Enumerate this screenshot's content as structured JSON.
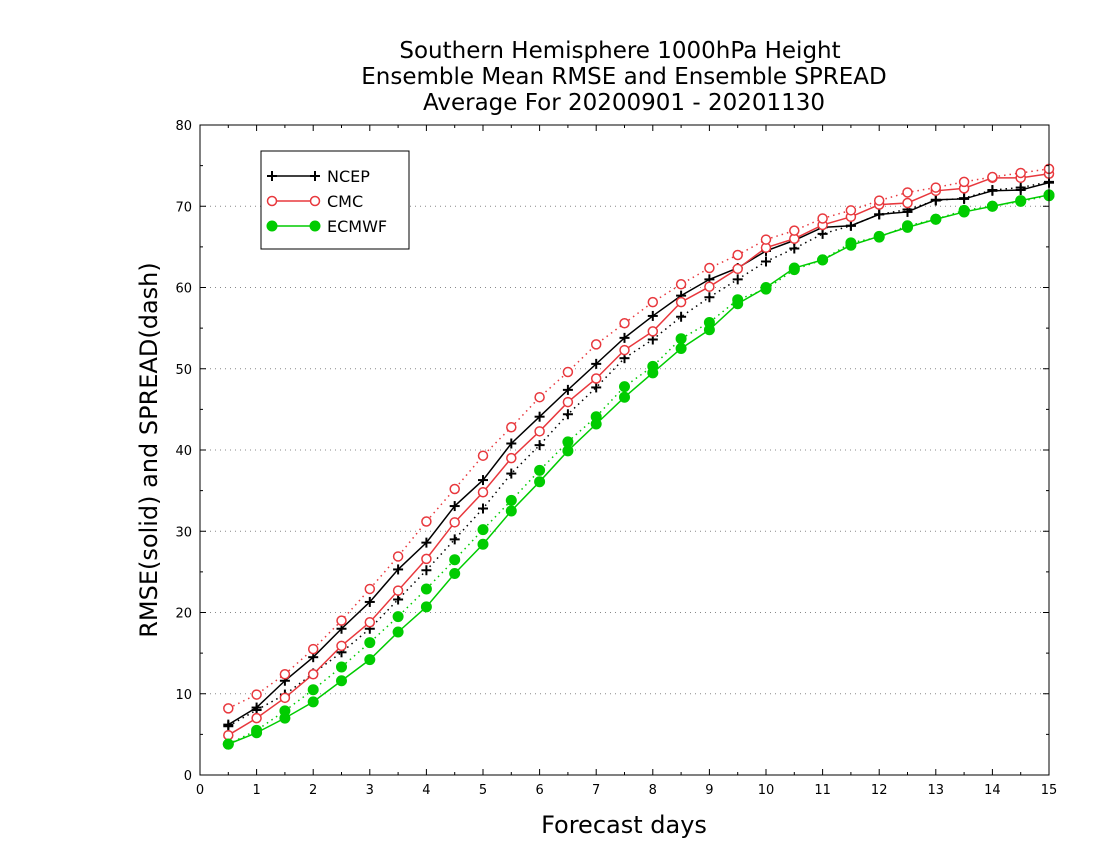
{
  "chart_data": {
    "type": "line",
    "title": [
      "Southern Hemisphere 1000hPa Height",
      "Ensemble Mean RMSE and Ensemble SPREAD",
      "Average For 20200901 - 20201130"
    ],
    "xlabel": "Forecast days",
    "ylabel": "RMSE(solid) and SPREAD(dash)",
    "xlim": [
      0,
      15
    ],
    "ylim": [
      0,
      80
    ],
    "xticks": [
      "0",
      "1",
      "2",
      "3",
      "4",
      "5",
      "6",
      "7",
      "8",
      "9",
      "10",
      "11",
      "12",
      "13",
      "14",
      "15"
    ],
    "yticks": [
      "0",
      "10",
      "20",
      "30",
      "40",
      "50",
      "60",
      "70",
      "80"
    ],
    "grid": "horizontal-dotted",
    "legend_position": "top-left",
    "x": [
      0.5,
      1,
      1.5,
      2,
      2.5,
      3,
      3.5,
      4,
      4.5,
      5,
      5.5,
      6,
      6.5,
      7,
      7.5,
      8,
      8.5,
      9,
      9.5,
      10,
      10.5,
      11,
      11.5,
      12,
      12.5,
      13,
      13.5,
      14,
      14.5,
      15
    ],
    "series": [
      {
        "name": "NCEP",
        "kind": "rmse",
        "color": "#000000",
        "marker": "plus",
        "values": [
          6.2,
          8.3,
          11.6,
          14.5,
          18.0,
          21.3,
          25.3,
          28.6,
          33.1,
          36.3,
          40.8,
          44.1,
          47.4,
          50.6,
          53.8,
          56.5,
          59.0,
          61.0,
          62.4,
          64.5,
          65.8,
          67.4,
          67.6,
          69.0,
          69.3,
          70.8,
          70.9,
          71.9,
          72.0,
          72.9
        ]
      },
      {
        "name": "NCEP",
        "kind": "spread",
        "color": "#000000",
        "marker": "plus",
        "values": [
          6.0,
          8.0,
          9.9,
          12.5,
          15.1,
          18.0,
          21.6,
          25.2,
          29.0,
          32.8,
          37.1,
          40.6,
          44.4,
          47.7,
          51.3,
          53.6,
          56.4,
          58.8,
          61.0,
          63.2,
          64.8,
          66.6,
          67.6,
          69.0,
          69.6,
          70.7,
          71.0,
          72.0,
          72.3,
          73.0
        ]
      },
      {
        "name": "CMC",
        "kind": "rmse",
        "color": "#e8383d",
        "marker": "circle-open",
        "values": [
          4.9,
          7.0,
          9.5,
          12.4,
          15.9,
          18.8,
          22.7,
          26.6,
          31.1,
          34.8,
          39.0,
          42.3,
          45.9,
          48.8,
          52.3,
          54.6,
          58.2,
          60.1,
          62.3,
          64.9,
          66.0,
          67.7,
          68.7,
          70.2,
          70.4,
          71.9,
          72.2,
          73.5,
          73.5,
          74.0
        ]
      },
      {
        "name": "CMC",
        "kind": "spread",
        "color": "#e8383d",
        "marker": "circle-open",
        "values": [
          8.2,
          9.9,
          12.4,
          15.5,
          19.0,
          22.9,
          26.9,
          31.2,
          35.2,
          39.3,
          42.8,
          46.5,
          49.6,
          53.0,
          55.6,
          58.2,
          60.4,
          62.4,
          64.0,
          65.9,
          67.0,
          68.5,
          69.5,
          70.7,
          71.7,
          72.3,
          73.0,
          73.6,
          74.1,
          74.6
        ]
      },
      {
        "name": "ECMWF",
        "kind": "rmse",
        "color": "#00cc00",
        "marker": "circle-filled",
        "values": [
          3.8,
          5.2,
          7.0,
          9.0,
          11.6,
          14.2,
          17.6,
          20.7,
          24.8,
          28.4,
          32.5,
          36.1,
          39.9,
          43.2,
          46.5,
          49.5,
          52.5,
          54.8,
          58.0,
          60.0,
          62.4,
          63.4,
          65.2,
          66.3,
          67.4,
          68.4,
          69.3,
          70.0,
          70.7,
          71.4
        ]
      },
      {
        "name": "ECMWF",
        "kind": "spread",
        "color": "#00cc00",
        "marker": "circle-filled",
        "values": [
          3.8,
          5.5,
          7.9,
          10.5,
          13.3,
          16.3,
          19.5,
          22.9,
          26.5,
          30.2,
          33.8,
          37.5,
          41.0,
          44.1,
          47.8,
          50.3,
          53.7,
          55.7,
          58.5,
          59.8,
          62.2,
          63.4,
          65.5,
          66.2,
          67.6,
          68.4,
          69.5,
          70.0,
          70.6,
          71.3
        ]
      }
    ],
    "legend": [
      {
        "label": "NCEP",
        "color": "#000000",
        "marker": "plus"
      },
      {
        "label": "CMC",
        "color": "#e8383d",
        "marker": "circle-open"
      },
      {
        "label": "ECMWF",
        "color": "#00cc00",
        "marker": "circle-filled"
      }
    ]
  }
}
